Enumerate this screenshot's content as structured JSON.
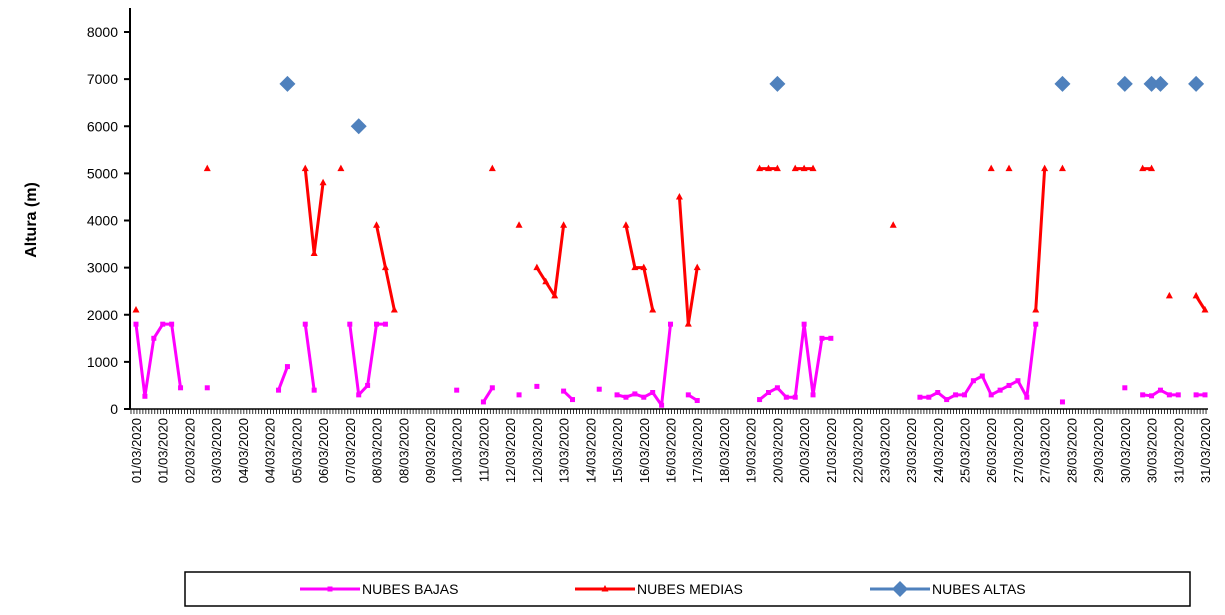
{
  "chart_data": {
    "type": "line",
    "y_label": "Altura (m)",
    "categories": [
      "01/03/2020",
      null,
      null,
      "01/03/2020",
      null,
      null,
      "02/03/2020",
      null,
      null,
      "03/03/2020",
      null,
      null,
      "04/03/2020",
      null,
      null,
      "04/03/2020",
      null,
      null,
      "05/03/2020",
      null,
      null,
      "06/03/2020",
      null,
      null,
      "07/03/2020",
      null,
      null,
      "08/03/2020",
      null,
      null,
      "08/03/2020",
      null,
      null,
      "09/03/2020",
      null,
      null,
      "10/03/2020",
      null,
      null,
      "11/03/2020",
      null,
      null,
      "12/03/2020",
      null,
      null,
      "12/03/2020",
      null,
      null,
      "13/03/2020",
      null,
      null,
      "14/03/2020",
      null,
      null,
      "15/03/2020",
      null,
      null,
      "16/03/2020",
      null,
      null,
      "16/03/2020",
      null,
      null,
      "17/03/2020",
      null,
      null,
      "18/03/2020",
      null,
      null,
      "19/03/2020",
      null,
      null,
      "20/03/2020",
      null,
      null,
      "20/03/2020",
      null,
      null,
      "21/03/2020",
      null,
      null,
      "22/03/2020",
      null,
      null,
      "23/03/2020",
      null,
      null,
      "23/03/2020",
      null,
      null,
      "24/03/2020",
      null,
      null,
      "25/03/2020",
      null,
      null,
      "26/03/2020",
      null,
      null,
      "27/03/2020",
      null,
      null,
      "27/03/2020",
      null,
      null,
      "28/03/2020",
      null,
      null,
      "29/03/2020",
      null,
      null,
      "30/03/2020",
      null,
      null,
      "30/03/2020",
      null,
      null,
      "31/03/2020",
      null,
      null,
      "31/03/2020"
    ],
    "series": [
      {
        "name": "NUBES BAJAS",
        "color": "#ff00ff",
        "marker": "square",
        "values": [
          1800,
          270,
          1500,
          1800,
          1800,
          450,
          null,
          null,
          450,
          null,
          null,
          null,
          null,
          null,
          null,
          null,
          400,
          900,
          null,
          1800,
          400,
          null,
          null,
          null,
          1800,
          300,
          500,
          1800,
          1800,
          null,
          null,
          null,
          null,
          null,
          null,
          null,
          400,
          null,
          null,
          150,
          450,
          null,
          null,
          300,
          null,
          480,
          null,
          null,
          380,
          200,
          null,
          null,
          420,
          null,
          300,
          250,
          320,
          250,
          350,
          80,
          1800,
          null,
          300,
          180,
          null,
          null,
          null,
          null,
          null,
          null,
          200,
          350,
          450,
          250,
          250,
          1800,
          300,
          1500,
          1500,
          null,
          null,
          null,
          null,
          null,
          null,
          null,
          null,
          null,
          250,
          250,
          350,
          200,
          300,
          300,
          600,
          700,
          300,
          400,
          500,
          600,
          250,
          1800,
          null,
          null,
          150,
          null,
          null,
          null,
          null,
          null,
          null,
          450,
          null,
          300,
          280,
          400,
          300,
          300,
          null,
          300,
          300
        ]
      },
      {
        "name": "NUBES MEDIAS",
        "color": "#ff0000",
        "marker": "triangle",
        "values": [
          2100,
          null,
          null,
          null,
          null,
          null,
          null,
          null,
          5100,
          null,
          null,
          null,
          null,
          null,
          null,
          null,
          null,
          null,
          null,
          5100,
          3300,
          4800,
          null,
          5100,
          null,
          null,
          null,
          3900,
          3000,
          2100,
          null,
          null,
          null,
          null,
          null,
          null,
          null,
          null,
          null,
          null,
          5100,
          null,
          null,
          3900,
          null,
          3000,
          2700,
          2400,
          3900,
          null,
          null,
          null,
          null,
          null,
          null,
          3900,
          3000,
          3000,
          2100,
          null,
          null,
          4500,
          1800,
          3000,
          null,
          null,
          null,
          null,
          null,
          null,
          5100,
          5100,
          5100,
          null,
          5100,
          5100,
          5100,
          null,
          null,
          null,
          null,
          null,
          null,
          null,
          null,
          3900,
          null,
          null,
          null,
          null,
          null,
          null,
          null,
          null,
          null,
          null,
          5100,
          null,
          5100,
          null,
          null,
          2100,
          5100,
          null,
          5100,
          null,
          null,
          null,
          null,
          null,
          null,
          null,
          null,
          5100,
          5100,
          null,
          2400,
          null,
          null,
          2400,
          2100
        ]
      },
      {
        "name": "NUBES ALTAS",
        "color": "#4f81bd",
        "marker": "diamond",
        "values": [
          null,
          null,
          null,
          null,
          null,
          null,
          null,
          null,
          null,
          null,
          null,
          null,
          null,
          null,
          null,
          null,
          null,
          6900,
          null,
          null,
          null,
          null,
          null,
          null,
          null,
          6000,
          null,
          null,
          null,
          null,
          null,
          null,
          null,
          null,
          null,
          null,
          null,
          null,
          null,
          null,
          null,
          null,
          null,
          null,
          null,
          null,
          null,
          null,
          null,
          null,
          null,
          null,
          null,
          null,
          null,
          null,
          null,
          null,
          null,
          null,
          null,
          null,
          null,
          null,
          null,
          null,
          null,
          null,
          null,
          null,
          null,
          null,
          6900,
          null,
          null,
          null,
          null,
          null,
          null,
          null,
          null,
          null,
          null,
          null,
          null,
          null,
          null,
          null,
          null,
          null,
          null,
          null,
          null,
          null,
          null,
          null,
          null,
          null,
          null,
          null,
          null,
          null,
          null,
          null,
          6900,
          null,
          null,
          null,
          null,
          null,
          null,
          6900,
          null,
          null,
          6900,
          6900,
          null,
          null,
          null,
          6900,
          null
        ]
      }
    ],
    "ylim": [
      0,
      8000
    ],
    "yticks": [
      0,
      1000,
      2000,
      3000,
      4000,
      5000,
      6000,
      7000,
      8000
    ],
    "grid": false,
    "legend": "bottom"
  }
}
